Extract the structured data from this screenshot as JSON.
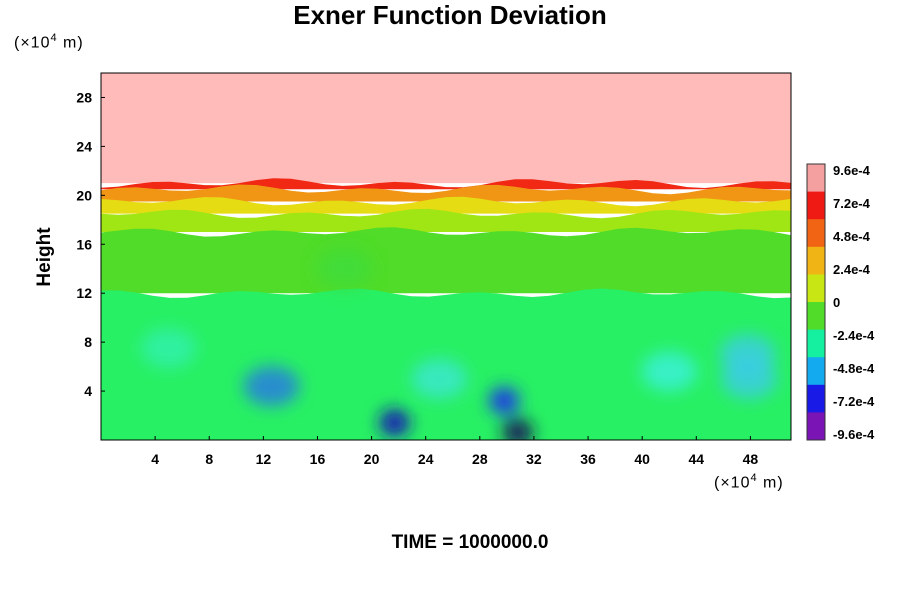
{
  "chart_data": {
    "type": "heatmap",
    "title": "Exner Function Deviation",
    "ylabel": "Height",
    "x_unit": {
      "prefix": "(×10",
      "exp": "4",
      "suffix": " m)"
    },
    "y_unit": {
      "prefix": "(×10",
      "exp": "4",
      "suffix": " m)"
    },
    "xlim": [
      0,
      51
    ],
    "ylim": [
      0,
      30
    ],
    "x_ticks": [
      4,
      8,
      12,
      16,
      20,
      24,
      28,
      32,
      36,
      40,
      44,
      48
    ],
    "y_ticks": [
      4,
      8,
      12,
      16,
      20,
      24,
      28
    ],
    "x_tick_labels": [
      "4",
      "8",
      "12",
      "16",
      "20",
      "24",
      "28",
      "32",
      "36",
      "40",
      "44",
      "48"
    ],
    "y_tick_labels": [
      "4",
      "8",
      "12",
      "16",
      "20",
      "24",
      "28"
    ],
    "colorbar": {
      "min": -0.00096,
      "max": 0.00096,
      "labels": [
        "9.6e-4",
        "7.2e-4",
        "4.8e-4",
        "2.4e-4",
        "0",
        "-2.4e-4",
        "-4.8e-4",
        "-7.2e-4",
        "-9.6e-4"
      ],
      "label_values": [
        0.00096,
        0.00072,
        0.00048,
        0.00024,
        0,
        -0.00024,
        -0.00048,
        -0.00072,
        -0.00096
      ],
      "colors": [
        "#f4a0a0",
        "#f01a14",
        "#f06414",
        "#f0b414",
        "#c8e614",
        "#50dc28",
        "#14f0a0",
        "#14aaf0",
        "#1a1ae6",
        "#7a14b4"
      ]
    },
    "layers": [
      {
        "y_from": 21,
        "y_to": 30,
        "value": 0.00096,
        "color": "#ffbaba"
      },
      {
        "y_from": 20.5,
        "y_to": 21,
        "value": 0.0008,
        "color": "#f02814"
      },
      {
        "y_from": 19.5,
        "y_to": 20.5,
        "value": 0.00055,
        "color": "#f09614"
      },
      {
        "y_from": 18.5,
        "y_to": 19.5,
        "value": 0.00035,
        "color": "#e6dc14"
      },
      {
        "y_from": 17,
        "y_to": 18.5,
        "value": 0.0002,
        "color": "#a0e614"
      },
      {
        "y_from": 12,
        "y_to": 17,
        "value": 5e-05,
        "color": "#50dc28"
      },
      {
        "y_from": 0,
        "y_to": 12,
        "value": -0.0001,
        "color": "#28f064"
      }
    ],
    "features": [
      {
        "x": 29.8,
        "y": 3.2,
        "value": -0.0007,
        "color": "#1a3ae6"
      },
      {
        "x": 30.8,
        "y": 0.6,
        "value": -0.00096,
        "color": "#14145a"
      },
      {
        "x": 21.7,
        "y": 1.4,
        "value": -0.0008,
        "color": "#1414b4"
      },
      {
        "x": 12.6,
        "y": 4.4,
        "value": -0.0005,
        "color": "#2a6ef0"
      },
      {
        "x": 42.0,
        "y": 5.6,
        "value": -0.00025,
        "color": "#3cf0e6"
      },
      {
        "x": 47.8,
        "y": 7.0,
        "value": -0.0003,
        "color": "#3cc8f0"
      },
      {
        "x": 47.9,
        "y": 5.0,
        "value": -0.0003,
        "color": "#3cc8f0"
      },
      {
        "x": 25.0,
        "y": 5.0,
        "value": -0.00025,
        "color": "#3ce6dc"
      },
      {
        "x": 5.0,
        "y": 7.5,
        "value": -0.0002,
        "color": "#32f0b4"
      },
      {
        "x": 18.0,
        "y": 14.0,
        "value": 0.0001,
        "color": "#3cdc3c"
      }
    ],
    "grid": false,
    "legend": "right"
  },
  "time_label": "TIME = 1000000.0"
}
